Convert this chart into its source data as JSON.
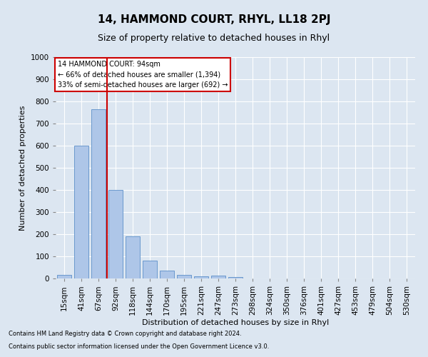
{
  "title": "14, HAMMOND COURT, RHYL, LL18 2PJ",
  "subtitle": "Size of property relative to detached houses in Rhyl",
  "xlabel": "Distribution of detached houses by size in Rhyl",
  "ylabel": "Number of detached properties",
  "footnote1": "Contains HM Land Registry data © Crown copyright and database right 2024.",
  "footnote2": "Contains public sector information licensed under the Open Government Licence v3.0.",
  "bar_labels": [
    "15sqm",
    "41sqm",
    "67sqm",
    "92sqm",
    "118sqm",
    "144sqm",
    "170sqm",
    "195sqm",
    "221sqm",
    "247sqm",
    "273sqm",
    "298sqm",
    "324sqm",
    "350sqm",
    "376sqm",
    "401sqm",
    "427sqm",
    "453sqm",
    "479sqm",
    "504sqm",
    "530sqm"
  ],
  "bar_values": [
    15,
    600,
    765,
    400,
    190,
    80,
    35,
    15,
    10,
    12,
    8,
    0,
    0,
    0,
    0,
    0,
    0,
    0,
    0,
    0,
    0
  ],
  "bar_color": "#aec6e8",
  "bar_edge_color": "#5b8fc9",
  "ylim": [
    0,
    1000
  ],
  "yticks": [
    0,
    100,
    200,
    300,
    400,
    500,
    600,
    700,
    800,
    900,
    1000
  ],
  "redline_bin_index": 3,
  "annotation_title": "14 HAMMOND COURT: 94sqm",
  "annotation_line1": "← 66% of detached houses are smaller (1,394)",
  "annotation_line2": "33% of semi-detached houses are larger (692) →",
  "annotation_box_color": "#ffffff",
  "annotation_box_edgecolor": "#cc0000",
  "bg_color": "#dce6f1",
  "plot_bg_color": "#dce6f1",
  "grid_color": "#ffffff",
  "title_fontsize": 11,
  "subtitle_fontsize": 9,
  "axis_label_fontsize": 8,
  "tick_fontsize": 7.5,
  "annotation_fontsize": 7,
  "footnote_fontsize": 6
}
